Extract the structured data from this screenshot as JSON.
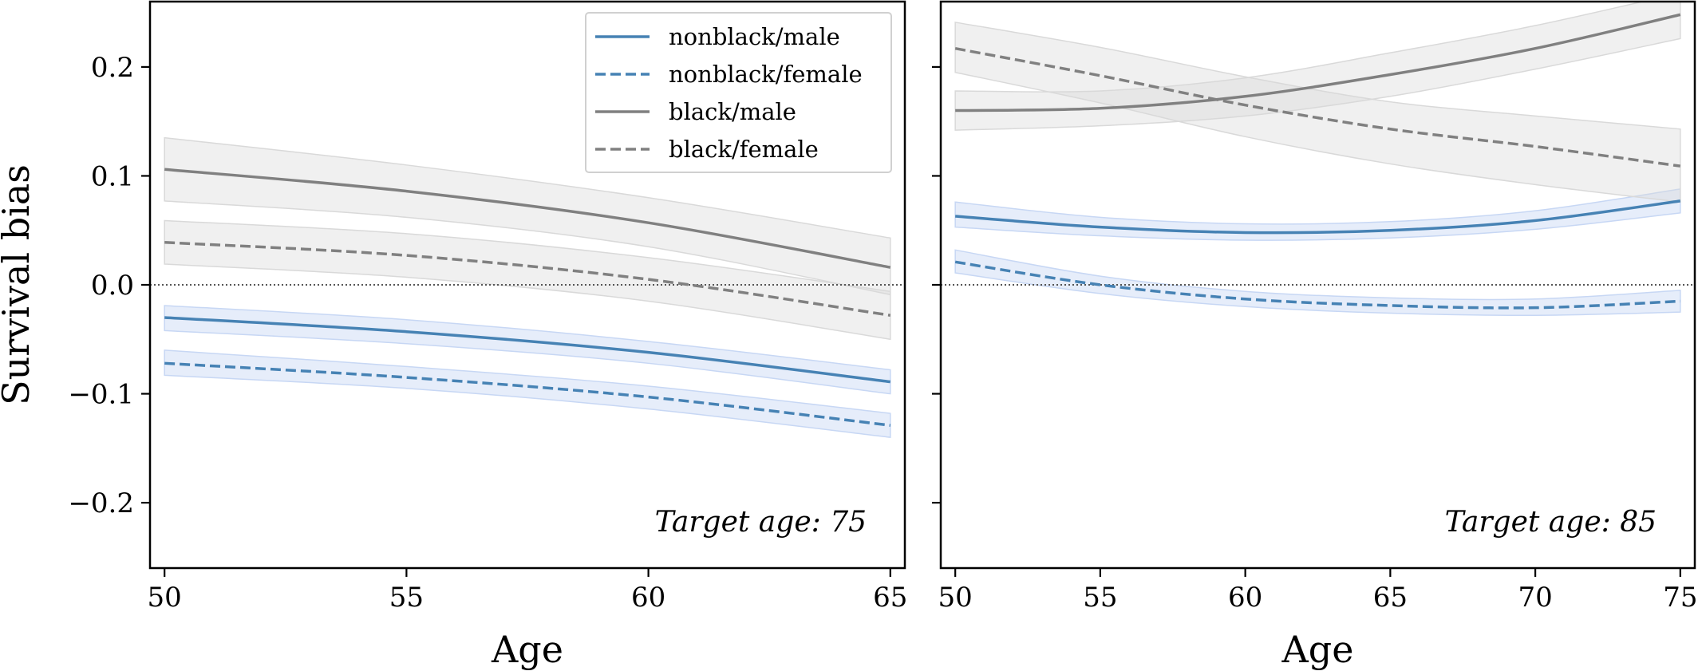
{
  "chart_data": [
    {
      "type": "line",
      "title": "",
      "xlabel": "Age",
      "ylabel": "Survival bias",
      "annotation": "Target age: 75",
      "xlim": [
        49.7,
        65.3
      ],
      "ylim": [
        -0.26,
        0.26
      ],
      "xticks": [
        50,
        55,
        60,
        65
      ],
      "yticks": [
        -0.2,
        -0.1,
        0.0,
        0.1,
        0.2
      ],
      "ytick_labels": [
        "−0.2",
        "−0.1",
        "0.0",
        "0.1",
        "0.2"
      ],
      "reference_line": {
        "y": 0.0,
        "style": "dotted"
      },
      "x": [
        50,
        55,
        60,
        65
      ],
      "series": [
        {
          "name": "nonblack/male",
          "color": "#4682b4",
          "style": "solid",
          "values": [
            -0.03,
            -0.043,
            -0.062,
            -0.089
          ],
          "band_low": [
            -0.042,
            -0.054,
            -0.072,
            -0.1
          ],
          "band_high": [
            -0.019,
            -0.032,
            -0.052,
            -0.078
          ]
        },
        {
          "name": "nonblack/female",
          "color": "#4682b4",
          "style": "dashed",
          "values": [
            -0.072,
            -0.085,
            -0.103,
            -0.129
          ],
          "band_low": [
            -0.083,
            -0.095,
            -0.114,
            -0.14
          ],
          "band_high": [
            -0.06,
            -0.075,
            -0.093,
            -0.118
          ]
        },
        {
          "name": "black/male",
          "color": "#808080",
          "style": "solid",
          "values": [
            0.106,
            0.086,
            0.057,
            0.016
          ],
          "band_low": [
            0.077,
            0.062,
            0.035,
            -0.009
          ],
          "band_high": [
            0.135,
            0.11,
            0.08,
            0.043
          ]
        },
        {
          "name": "black/female",
          "color": "#808080",
          "style": "dashed",
          "values": [
            0.039,
            0.027,
            0.005,
            -0.028
          ],
          "band_low": [
            0.019,
            0.007,
            -0.015,
            -0.05
          ],
          "band_high": [
            0.059,
            0.047,
            0.025,
            -0.006
          ]
        }
      ],
      "legend": {
        "location": "top-right",
        "entries": [
          "nonblack/male",
          "nonblack/female",
          "black/male",
          "black/female"
        ]
      }
    },
    {
      "type": "line",
      "title": "",
      "xlabel": "Age",
      "ylabel": "",
      "annotation": "Target age: 85",
      "xlim": [
        49.5,
        75.5
      ],
      "ylim": [
        -0.26,
        0.26
      ],
      "xticks": [
        50,
        55,
        60,
        65,
        70,
        75
      ],
      "yticks": [
        -0.2,
        -0.1,
        0.0,
        0.1,
        0.2
      ],
      "reference_line": {
        "y": 0.0,
        "style": "dotted"
      },
      "x": [
        50,
        55,
        60,
        65,
        70,
        75
      ],
      "series": [
        {
          "name": "nonblack/male",
          "color": "#4682b4",
          "style": "solid",
          "values": [
            0.063,
            0.053,
            0.048,
            0.05,
            0.059,
            0.077
          ],
          "band_low": [
            0.053,
            0.045,
            0.041,
            0.043,
            0.051,
            0.066
          ],
          "band_high": [
            0.076,
            0.062,
            0.056,
            0.058,
            0.068,
            0.088
          ]
        },
        {
          "name": "nonblack/female",
          "color": "#4682b4",
          "style": "dashed",
          "values": [
            0.021,
            0.0,
            -0.013,
            -0.019,
            -0.021,
            -0.015
          ],
          "band_low": [
            0.011,
            -0.008,
            -0.02,
            -0.026,
            -0.028,
            -0.025
          ],
          "band_high": [
            0.032,
            0.008,
            -0.006,
            -0.012,
            -0.013,
            -0.005
          ]
        },
        {
          "name": "black/male",
          "color": "#808080",
          "style": "solid",
          "values": [
            0.16,
            0.162,
            0.173,
            0.193,
            0.217,
            0.248
          ],
          "band_low": [
            0.142,
            0.146,
            0.155,
            0.173,
            0.198,
            0.226
          ],
          "band_high": [
            0.178,
            0.178,
            0.19,
            0.213,
            0.238,
            0.268
          ]
        },
        {
          "name": "black/female",
          "color": "#808080",
          "style": "dashed",
          "values": [
            0.217,
            0.192,
            0.165,
            0.143,
            0.127,
            0.109
          ],
          "band_low": [
            0.195,
            0.167,
            0.136,
            0.111,
            0.092,
            0.076
          ],
          "band_high": [
            0.241,
            0.218,
            0.191,
            0.168,
            0.155,
            0.143
          ]
        }
      ]
    }
  ]
}
